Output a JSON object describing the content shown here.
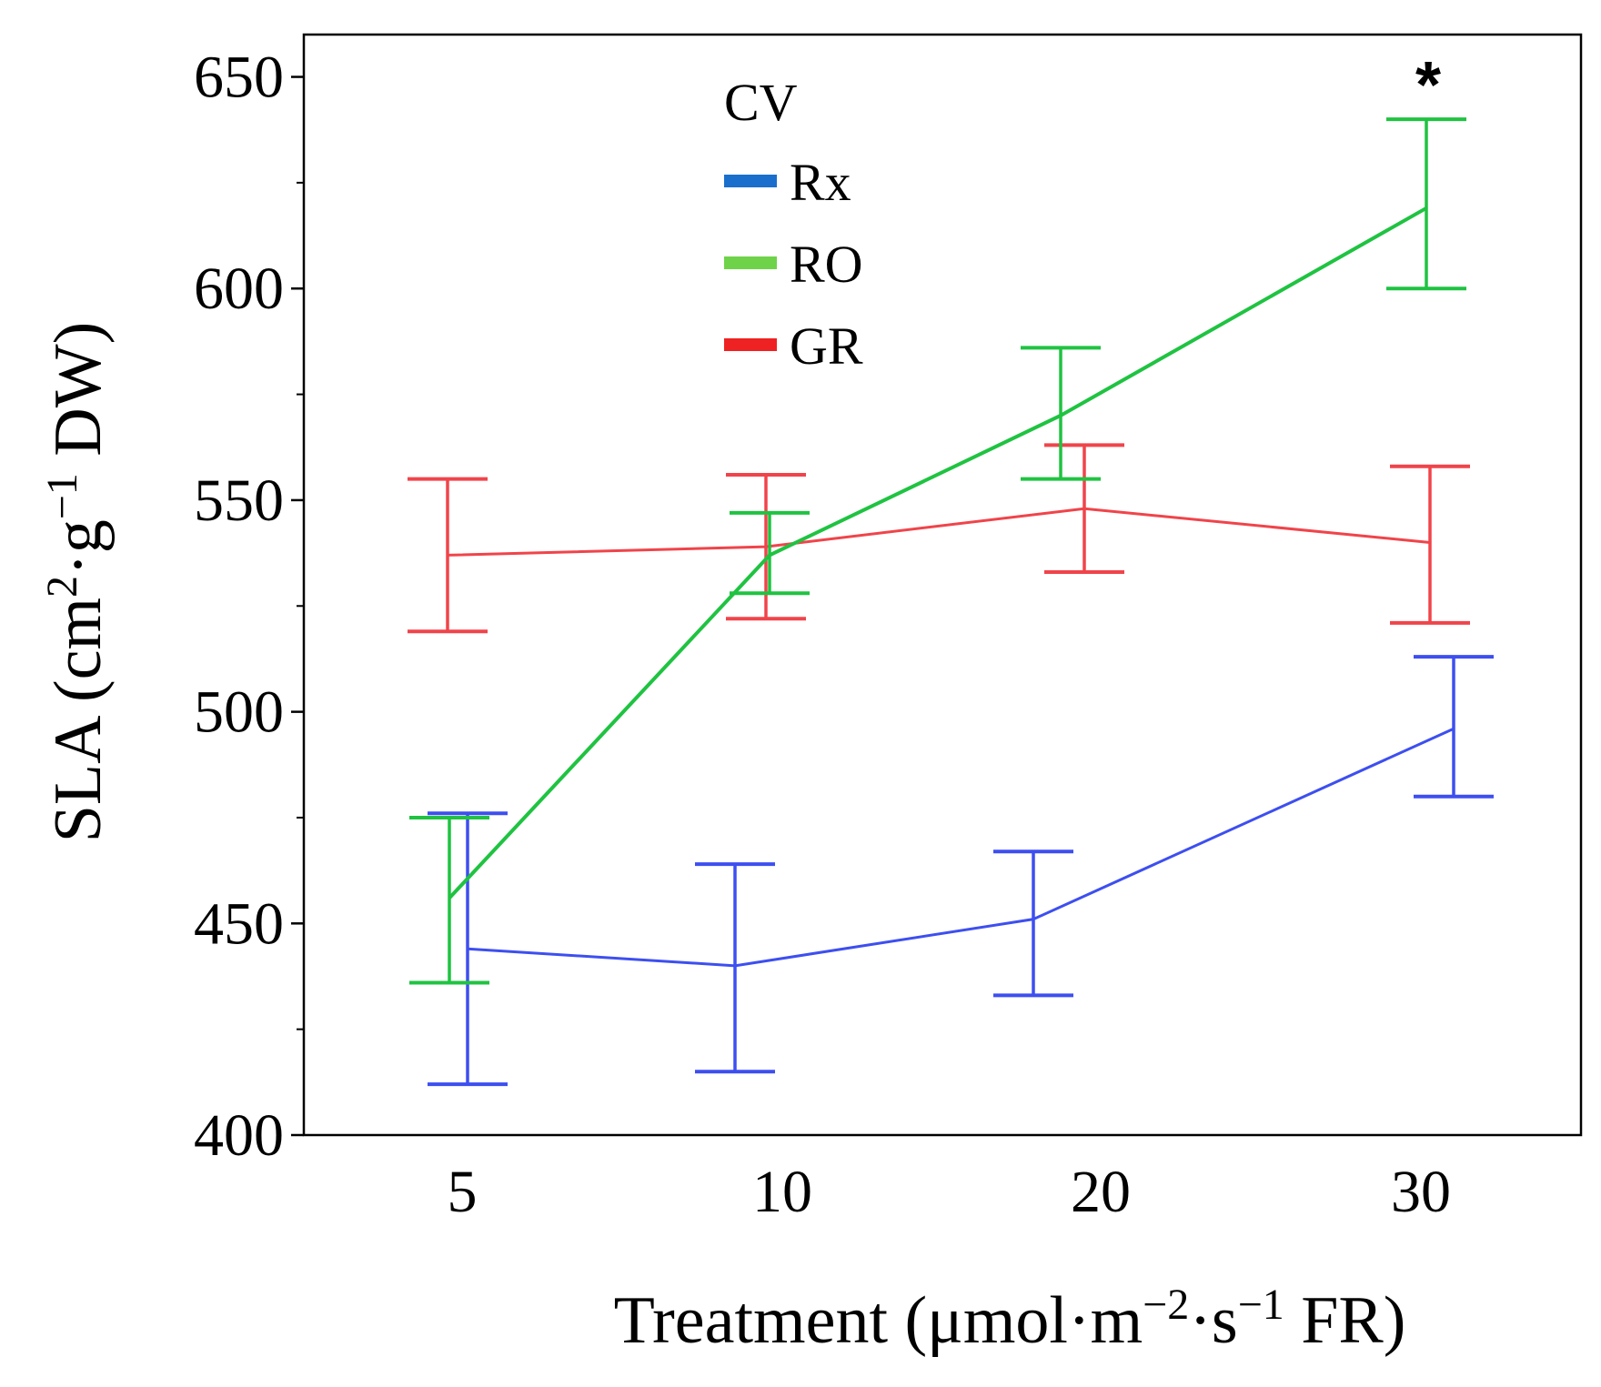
{
  "chart_data": {
    "type": "line",
    "title": "",
    "xlabel": "Treatment (μmol·m⁻²·s⁻¹ FR)",
    "ylabel": "SLA (cm²·g⁻¹ DW)",
    "categories": [
      "5",
      "10",
      "20",
      "30"
    ],
    "ylim": [
      400,
      660
    ],
    "yticks": [
      400,
      450,
      500,
      550,
      600,
      650
    ],
    "legend_title": "CV",
    "legend_position": "top-center",
    "series": [
      {
        "name": "Rx",
        "color": "#3d4ff0",
        "legend_color": "#1a6fcc",
        "values": [
          444,
          440,
          451,
          496
        ],
        "err_low": [
          412,
          415,
          433,
          480
        ],
        "err_high": [
          476,
          464,
          467,
          513
        ]
      },
      {
        "name": "RO",
        "color": "#1fc341",
        "legend_color": "#6fd34a",
        "values": [
          456,
          537,
          570,
          619
        ],
        "err_low": [
          436,
          528,
          555,
          600
        ],
        "err_high": [
          475,
          547,
          586,
          640
        ]
      },
      {
        "name": "GR",
        "color": "#f0444a",
        "legend_color": "#ee2222",
        "values": [
          537,
          539,
          548,
          540
        ],
        "err_low": [
          519,
          522,
          533,
          521
        ],
        "err_high": [
          555,
          556,
          563,
          558
        ]
      }
    ],
    "annotations": [
      {
        "text": "*",
        "category": "30",
        "value": 650
      }
    ]
  }
}
